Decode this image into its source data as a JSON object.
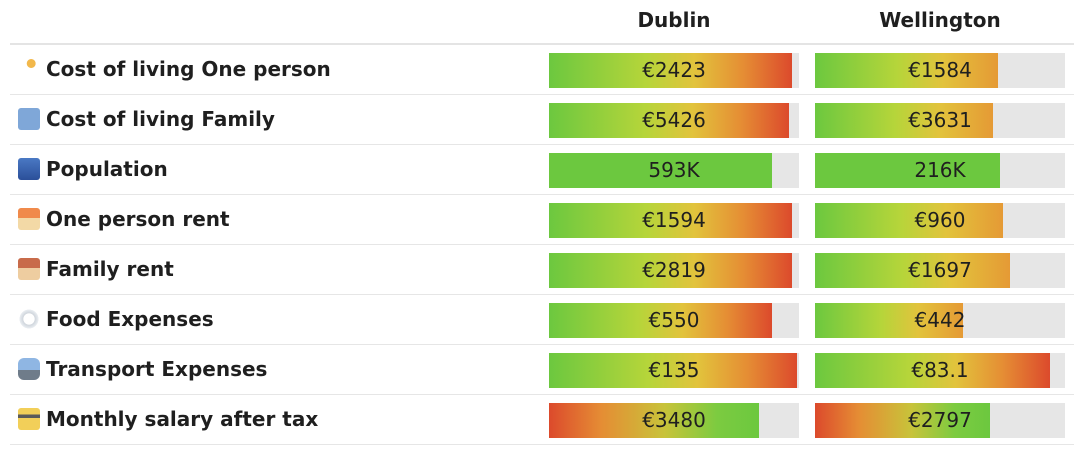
{
  "cities": [
    "Dublin",
    "Wellington"
  ],
  "rows": [
    {
      "label": "Cost of living One person",
      "icon": "person-walking-icon",
      "values": [
        "€2423",
        "€1584"
      ],
      "fill": [
        0.97,
        0.73
      ],
      "gradient": [
        "hot",
        "warm"
      ]
    },
    {
      "label": "Cost of living Family",
      "icon": "family-icon",
      "values": [
        "€5426",
        "€3631"
      ],
      "fill": [
        0.96,
        0.71
      ],
      "gradient": [
        "hot",
        "warm"
      ]
    },
    {
      "label": "Population",
      "icon": "cityscape-icon",
      "values": [
        "593K",
        "216K"
      ],
      "fill": [
        0.89,
        0.74
      ],
      "gradient": [
        "green",
        "green"
      ]
    },
    {
      "label": "One person rent",
      "icon": "house-icon",
      "values": [
        "€1594",
        "€960"
      ],
      "fill": [
        0.97,
        0.75
      ],
      "gradient": [
        "hot",
        "warm"
      ]
    },
    {
      "label": "Family rent",
      "icon": "houses-icon",
      "values": [
        "€2819",
        "€1697"
      ],
      "fill": [
        0.97,
        0.78
      ],
      "gradient": [
        "hot",
        "warm"
      ]
    },
    {
      "label": "Food Expenses",
      "icon": "plate-cutlery-icon",
      "values": [
        "€550",
        "€442"
      ],
      "fill": [
        0.89,
        0.59
      ],
      "gradient": [
        "hot",
        "warm"
      ]
    },
    {
      "label": "Transport Expenses",
      "icon": "bus-icon",
      "values": [
        "€135",
        "€83.1"
      ],
      "fill": [
        0.99,
        0.94
      ],
      "gradient": [
        "hot",
        "hot"
      ]
    },
    {
      "label": "Monthly salary after tax",
      "icon": "credit-card-icon",
      "values": [
        "€3480",
        "€2797"
      ],
      "fill": [
        0.84,
        0.7
      ],
      "gradient": [
        "rev",
        "rev"
      ]
    }
  ]
}
